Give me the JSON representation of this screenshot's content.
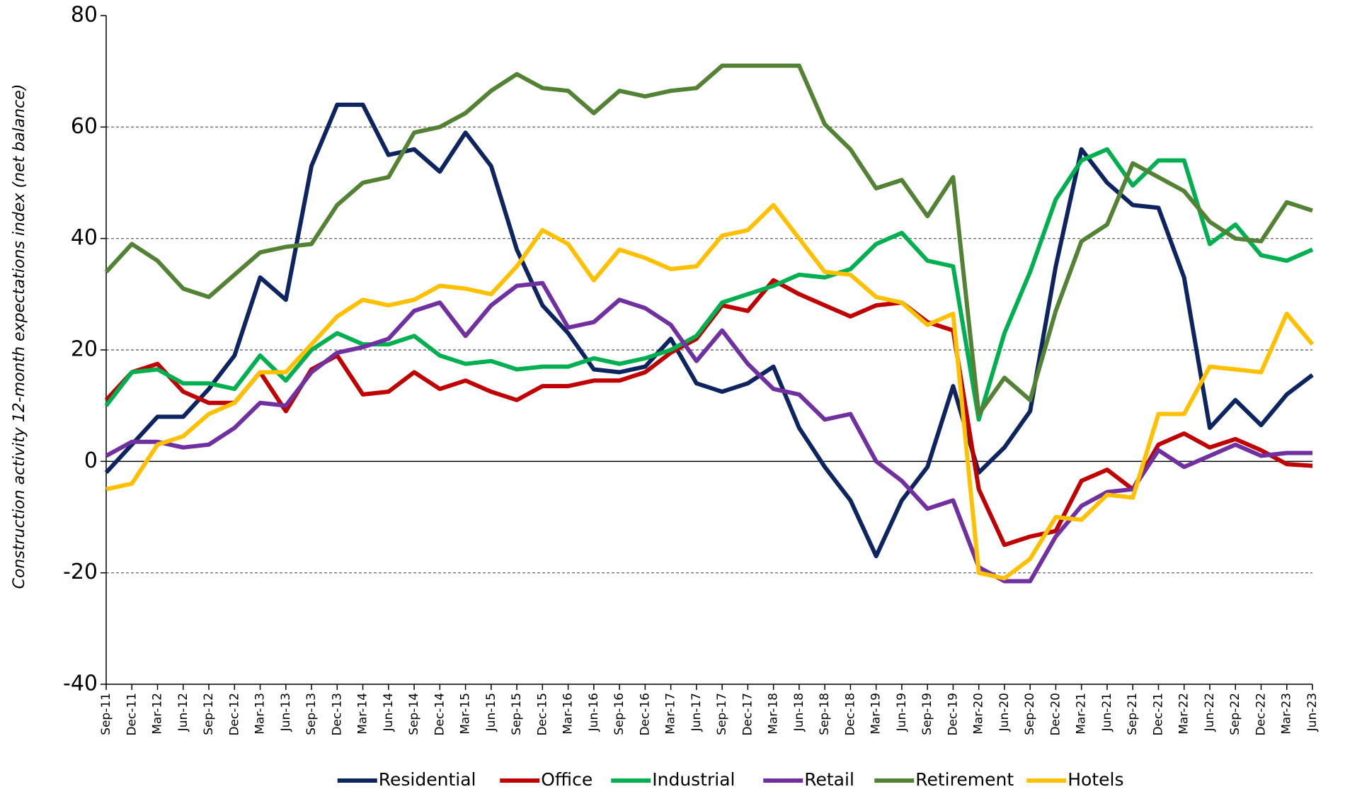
{
  "chart_data": {
    "type": "line",
    "y_label": "Construction activity 12-month expectations index (net balance)",
    "categories": [
      "Sep-11",
      "Dec-11",
      "Mar-12",
      "Jun-12",
      "Sep-12",
      "Dec-12",
      "Mar-13",
      "Jun-13",
      "Sep-13",
      "Dec-13",
      "Mar-14",
      "Jun-14",
      "Sep-14",
      "Dec-14",
      "Mar-15",
      "Jun-15",
      "Sep-15",
      "Dec-15",
      "Mar-16",
      "Jun-16",
      "Sep-16",
      "Dec-16",
      "Mar-17",
      "Jun-17",
      "Sep-17",
      "Dec-17",
      "Mar-18",
      "Jun-18",
      "Sep-18",
      "Dec-18",
      "Mar-19",
      "Jun-19",
      "Sep-19",
      "Dec-19",
      "Mar-20",
      "Jun-20",
      "Sep-20",
      "Dec-20",
      "Mar-21",
      "Jun-21",
      "Sep-21",
      "Dec-21",
      "Mar-22",
      "Jun-22",
      "Sep-22",
      "Dec-22",
      "Mar-23",
      "Jun-23"
    ],
    "series": [
      {
        "name": "Residential",
        "color": "#0d2460",
        "values": [
          -2,
          3,
          8,
          8,
          13,
          19,
          33,
          29,
          53,
          64,
          64,
          55,
          56,
          52,
          59,
          53,
          38,
          28,
          23,
          16.5,
          16,
          17,
          22,
          14,
          12.5,
          14,
          17,
          6,
          -1,
          -7,
          -17,
          -7,
          -1,
          13.5,
          -2,
          2.5,
          9,
          35,
          56,
          50,
          46,
          45.5,
          33,
          6,
          11,
          6.5,
          12,
          15.5
        ]
      },
      {
        "name": "Office",
        "color": "#c00000",
        "values": [
          11,
          16,
          17.5,
          12.5,
          10.5,
          10.5,
          16,
          9,
          16.5,
          19,
          12,
          12.5,
          16,
          13,
          14.5,
          12.5,
          11,
          13.5,
          13.5,
          14.5,
          14.5,
          16,
          19.5,
          22,
          28,
          27,
          32.5,
          30,
          28,
          26,
          28,
          28.5,
          25,
          23.5,
          -5,
          -15,
          -13.5,
          -12.5,
          -3.5,
          -1.5,
          -5,
          3,
          5,
          2.5,
          4,
          2,
          -0.5,
          -0.8
        ]
      },
      {
        "name": "Industrial",
        "color": "#00b050",
        "values": [
          10,
          16,
          16.5,
          14,
          14,
          13,
          19,
          14.5,
          20,
          23,
          21,
          21,
          22.5,
          19,
          17.5,
          18,
          16.5,
          17,
          17,
          18.5,
          17.5,
          18.5,
          20,
          22.5,
          28.5,
          30,
          31.5,
          33.5,
          33,
          34.5,
          39,
          41,
          36,
          35,
          7.5,
          23,
          34,
          47,
          54,
          56,
          49.5,
          54,
          54,
          39,
          42.5,
          37,
          36,
          38
        ]
      },
      {
        "name": "Retail",
        "color": "#7030a0",
        "values": [
          1,
          3.5,
          3.5,
          2.5,
          3,
          6,
          10.5,
          10,
          16,
          19.5,
          20.5,
          22,
          27,
          28.5,
          22.5,
          28,
          31.5,
          32,
          24,
          25,
          29,
          27.5,
          24.5,
          18,
          23.5,
          17.5,
          13,
          12,
          7.5,
          8.5,
          0,
          -3.5,
          -8.5,
          -7,
          -19,
          -21.5,
          -21.5,
          -13.5,
          -8,
          -5.5,
          -5,
          2,
          -1,
          1,
          3,
          1,
          1.5,
          1.5
        ]
      },
      {
        "name": "Retirement",
        "color": "#548235",
        "values": [
          34,
          39,
          36,
          31,
          29.5,
          33.5,
          37.5,
          38.5,
          39,
          46,
          50,
          51,
          59,
          60,
          62.5,
          66.5,
          69.5,
          67,
          66.5,
          62.5,
          66.5,
          65.5,
          66.5,
          67,
          71,
          71,
          71,
          71,
          60.5,
          56,
          49,
          50.5,
          44,
          51,
          8.5,
          15,
          11,
          27,
          39.5,
          42.5,
          53.5,
          51,
          48.5,
          43,
          40,
          39.5,
          46.5,
          45
        ]
      },
      {
        "name": "Hotels",
        "color": "#ffc000",
        "values": [
          -5,
          -4,
          3,
          4.5,
          8.5,
          10.5,
          16,
          16,
          21,
          26,
          29,
          28,
          29,
          31.5,
          31,
          30,
          35,
          41.5,
          39,
          32.5,
          38,
          36.5,
          34.5,
          35,
          40.5,
          41.5,
          46,
          40,
          34,
          33.5,
          29.5,
          28.5,
          24.5,
          26.5,
          -20,
          -21,
          -17.5,
          -10,
          -10.5,
          -6,
          -6.5,
          8.5,
          8.5,
          17,
          16.5,
          16,
          26.5,
          21
        ]
      }
    ],
    "ylim": [
      -40,
      80
    ],
    "yticks": [
      -40,
      -20,
      0,
      20,
      40,
      60,
      80
    ],
    "grid": true,
    "legend": "bottom"
  }
}
